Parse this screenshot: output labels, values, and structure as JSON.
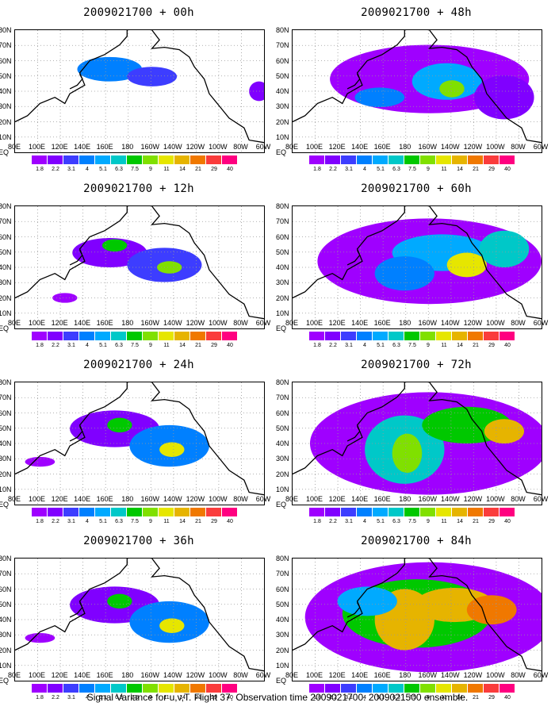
{
  "panels": [
    {
      "title": "2009021700 + 00h",
      "intensity": 0
    },
    {
      "title": "2009021700 + 48h",
      "intensity": 3
    },
    {
      "title": "2009021700 + 12h",
      "intensity": 1
    },
    {
      "title": "2009021700 + 60h",
      "intensity": 4
    },
    {
      "title": "2009021700 + 24h",
      "intensity": 2
    },
    {
      "title": "2009021700 + 72h",
      "intensity": 5
    },
    {
      "title": "2009021700 + 36h",
      "intensity": 2
    },
    {
      "title": "2009021700 + 84h",
      "intensity": 6
    }
  ],
  "lat_labels": [
    "80N",
    "70N",
    "60N",
    "50N",
    "40N",
    "30N",
    "20N",
    "10N",
    "EQ"
  ],
  "lon_labels": [
    "80E",
    "100E",
    "120E",
    "140E",
    "160E",
    "180",
    "160W",
    "140W",
    "120W",
    "100W",
    "80W",
    "60W"
  ],
  "colorbar": {
    "labels": [
      "1.8",
      "2.2",
      "3.1",
      "4",
      "5.1",
      "6.3",
      "7.5",
      "9",
      "11",
      "14",
      "21",
      "29",
      "40"
    ],
    "colors": [
      "#9f00ff",
      "#8000ff",
      "#3d3dff",
      "#0080ff",
      "#00aaff",
      "#00c8c8",
      "#00c800",
      "#80e000",
      "#e6e600",
      "#e6b400",
      "#f07800",
      "#fa3c3c",
      "#ff0080"
    ]
  },
  "footer": "Signal Variance for u,v,T. Flight 37. Observation time 2009021700. 2009021500 ensemble."
}
